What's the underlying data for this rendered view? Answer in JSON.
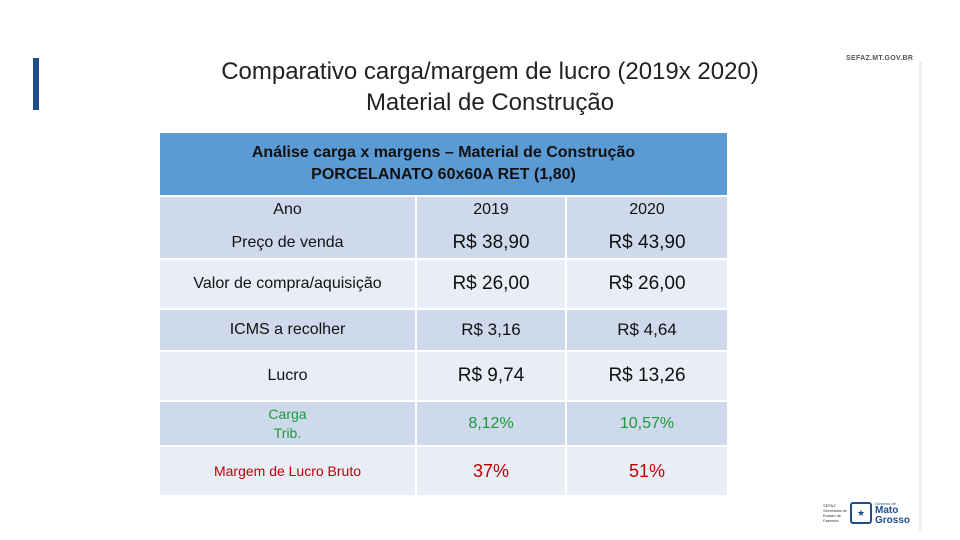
{
  "title_line1": "Comparativo carga/margem de lucro (2019x 2020)",
  "title_line2": "Material de Construção",
  "site_url": "SEFAZ.MT.GOV.BR",
  "table": {
    "header_line1": "Análise carga x margens – Material de Construção",
    "header_line2": "PORCELANATO 60x60A RET (1,80)",
    "year_label": "Ano",
    "years": [
      "2019",
      "2020"
    ],
    "rows": [
      {
        "label": "Preço de venda",
        "v2019": "R$ 38,90",
        "v2020": "R$ 43,90"
      },
      {
        "label": "Valor de compra/aquisição",
        "v2019": "R$ 26,00",
        "v2020": "R$ 26,00"
      },
      {
        "label": "ICMS a recolher",
        "v2019": "R$ 3,16",
        "v2020": "R$ 4,64"
      },
      {
        "label": "Lucro",
        "v2019": "R$ 9,74",
        "v2020": "R$ 13,26"
      },
      {
        "label_line1": "Carga",
        "label_line2": "Trib.",
        "v2019": "8,12%",
        "v2020": "10,57%"
      },
      {
        "label": "Margem de Lucro Bruto",
        "v2019": "37%",
        "v2020": "51%"
      }
    ]
  },
  "logo": {
    "left_text": "SEFAZ Secretaria de Estado de Fazenda",
    "gov_text": "Governo de",
    "state_line1": "Mato",
    "state_line2": "Grosso"
  },
  "colors": {
    "header": "#5b9bd5",
    "accent": "#1f4e8c",
    "green": "#1a9a3a",
    "red": "#c00000"
  }
}
